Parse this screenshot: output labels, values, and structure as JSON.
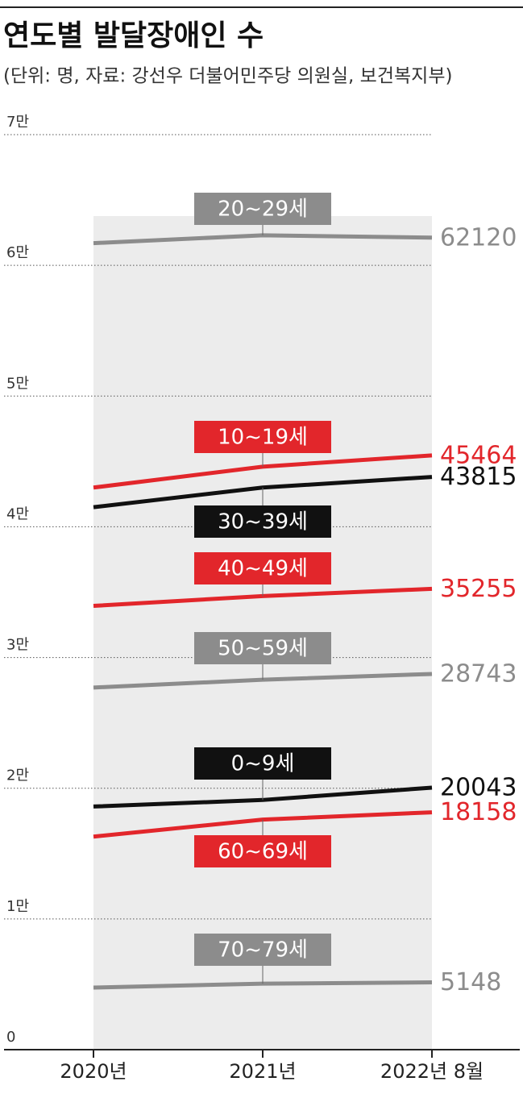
{
  "chart_data": {
    "type": "line",
    "title": "연도별 발달장애인 수",
    "subtitle": "(단위: 명,  자료: 강선우 더불어민주당 의원실, 보건복지부)",
    "categories": [
      "2020년",
      "2021년",
      "2022년 8월"
    ],
    "ylim": [
      0,
      70000
    ],
    "yticks": [
      0,
      {
        "value": 10000,
        "label": "1만"
      },
      {
        "value": 20000,
        "label": "2만"
      },
      {
        "value": 30000,
        "label": "3만"
      },
      {
        "value": 40000,
        "label": "4만"
      },
      {
        "value": 50000,
        "label": "5만"
      },
      {
        "value": 60000,
        "label": "6만"
      },
      {
        "value": 70000,
        "label": "7만"
      }
    ],
    "grid": true,
    "series": [
      {
        "name": "20~29세",
        "color": "#8c8c8c",
        "values": [
          61700,
          62300,
          62120
        ]
      },
      {
        "name": "10~19세",
        "color": "#e2262b",
        "values": [
          43000,
          44600,
          45464
        ]
      },
      {
        "name": "30~39세",
        "color": "#111111",
        "values": [
          41500,
          43000,
          43815
        ]
      },
      {
        "name": "40~49세",
        "color": "#e2262b",
        "values": [
          33950,
          34700,
          35255
        ]
      },
      {
        "name": "50~59세",
        "color": "#8c8c8c",
        "values": [
          27700,
          28300,
          28743
        ]
      },
      {
        "name": "0~9세",
        "color": "#111111",
        "values": [
          18600,
          19100,
          20043
        ]
      },
      {
        "name": "60~69세",
        "color": "#e2262b",
        "values": [
          16300,
          17600,
          18158
        ]
      },
      {
        "name": "70~79세",
        "color": "#8c8c8c",
        "values": [
          4750,
          5050,
          5148
        ]
      }
    ]
  }
}
